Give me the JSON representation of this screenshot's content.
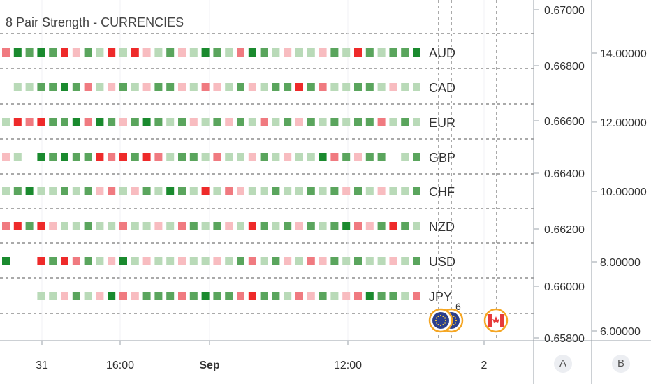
{
  "title": "8 Pair Strength - CURRENCIES",
  "colors": {
    "strong_green": "#1a8a2e",
    "mid_green": "#5aa55d",
    "light_green": "#b9dab8",
    "strong_red": "#ee2a2a",
    "mid_red": "#f07a80",
    "light_red": "#f8bcc0"
  },
  "rows": [
    {
      "label": "AUD",
      "start": 0,
      "cells": "mGmGmRlmlRlRllmllGmlmGmlllllmlRmlmmGmllGllm"
    },
    {
      "label": "CAD",
      "start": 1,
      "cells": "llmmGmmllmllmmllmllmllmmMmmllmmllllrmGmmGmmllRmGmG"
    },
    {
      "label": "EUR",
      "start": 0,
      "cells": "lRmRmmGmGmlmGmlmllmlmlmlmlmlmlmmmlmllmGmmmmlmlmll"
    },
    {
      "label": "GBP",
      "start": 0,
      "cells": "ll_GmGmmRrRmRrlmmlmlllmllllGmmlmm_lmGmmllmmmmmmll"
    },
    {
      "label": "CHF",
      "start": 0,
      "cells": "lmGllmlmlmllmlGmlRlmlllmllmlmlmllllmmlmlmmlllmlml"
    },
    {
      "label": "NZD",
      "start": 0,
      "cells": "mRmRlllmllmllllmmlmllRmlmlmlmGmlmRmllRlmR"
    },
    {
      "label": "USD",
      "start": 0,
      "cells": "G__RmRmmllGlllllllllmmlmllmlmlmllllmmlmlmllmlmlll"
    },
    {
      "label": "JPY",
      "start": 3,
      "cells": "lllmllGmlmmmmmGmmmRmmlmlmllmGmmlmmmlllmlRmlmml"
    }
  ],
  "events": {
    "badge_count": "6",
    "eu_flag_icon": "eu-flag-icon",
    "ca_flag_icon": "ca-flag-icon"
  },
  "time_axis": {
    "ticks": [
      "31",
      "16:00",
      "Sep",
      "12:00",
      "2"
    ]
  },
  "price_axis_a": {
    "ticks": [
      "0.67000",
      "0.66800",
      "0.66600",
      "0.66400",
      "0.66200",
      "0.66000",
      "0.65800"
    ]
  },
  "price_axis_b": {
    "ticks": [
      "14.00000",
      "12.00000",
      "10.00000",
      "8.00000",
      "6.00000"
    ]
  },
  "scale_buttons": {
    "a": "A",
    "b": "B"
  }
}
